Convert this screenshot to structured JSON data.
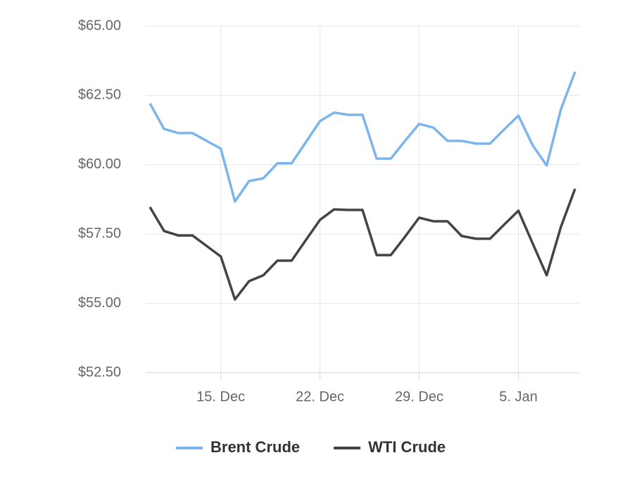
{
  "chart_data": {
    "type": "line",
    "categories": [
      null,
      null,
      null,
      null,
      null,
      "15. Dec",
      null,
      null,
      null,
      null,
      null,
      null,
      "22. Dec",
      null,
      null,
      null,
      null,
      null,
      null,
      "29. Dec",
      null,
      null,
      null,
      null,
      null,
      null,
      "5. Jan",
      null,
      null,
      null,
      null
    ],
    "series": [
      {
        "name": "Brent Crude",
        "color": "#7cb5ec",
        "values": [
          62.21,
          61.29,
          61.14,
          61.14,
          60.86,
          60.58,
          58.67,
          59.41,
          59.51,
          60.05,
          60.05,
          60.81,
          61.57,
          61.88,
          61.8,
          61.8,
          60.22,
          60.22,
          60.86,
          61.47,
          61.34,
          60.86,
          60.86,
          60.76,
          60.76,
          61.27,
          61.77,
          60.71,
          59.97,
          62.0,
          63.35
        ]
      },
      {
        "name": "WTI Crude",
        "color": "#434348",
        "values": [
          58.47,
          57.61,
          57.45,
          57.45,
          57.07,
          56.69,
          55.14,
          55.8,
          56.01,
          56.54,
          56.54,
          57.28,
          58.01,
          58.39,
          58.37,
          58.37,
          56.74,
          56.74,
          57.4,
          58.09,
          57.96,
          57.96,
          57.43,
          57.33,
          57.33,
          57.84,
          58.34,
          57.17,
          56.01,
          57.76,
          59.13
        ]
      }
    ],
    "ylim": [
      52.5,
      65
    ],
    "yticks": [
      {
        "value": 52.5,
        "label": "$52.50"
      },
      {
        "value": 55,
        "label": "$55.00"
      },
      {
        "value": 57.5,
        "label": "$57.50"
      },
      {
        "value": 60,
        "label": "$60.00"
      },
      {
        "value": 62.5,
        "label": "$62.50"
      },
      {
        "value": 65,
        "label": "$65.00"
      }
    ],
    "grid": true
  }
}
